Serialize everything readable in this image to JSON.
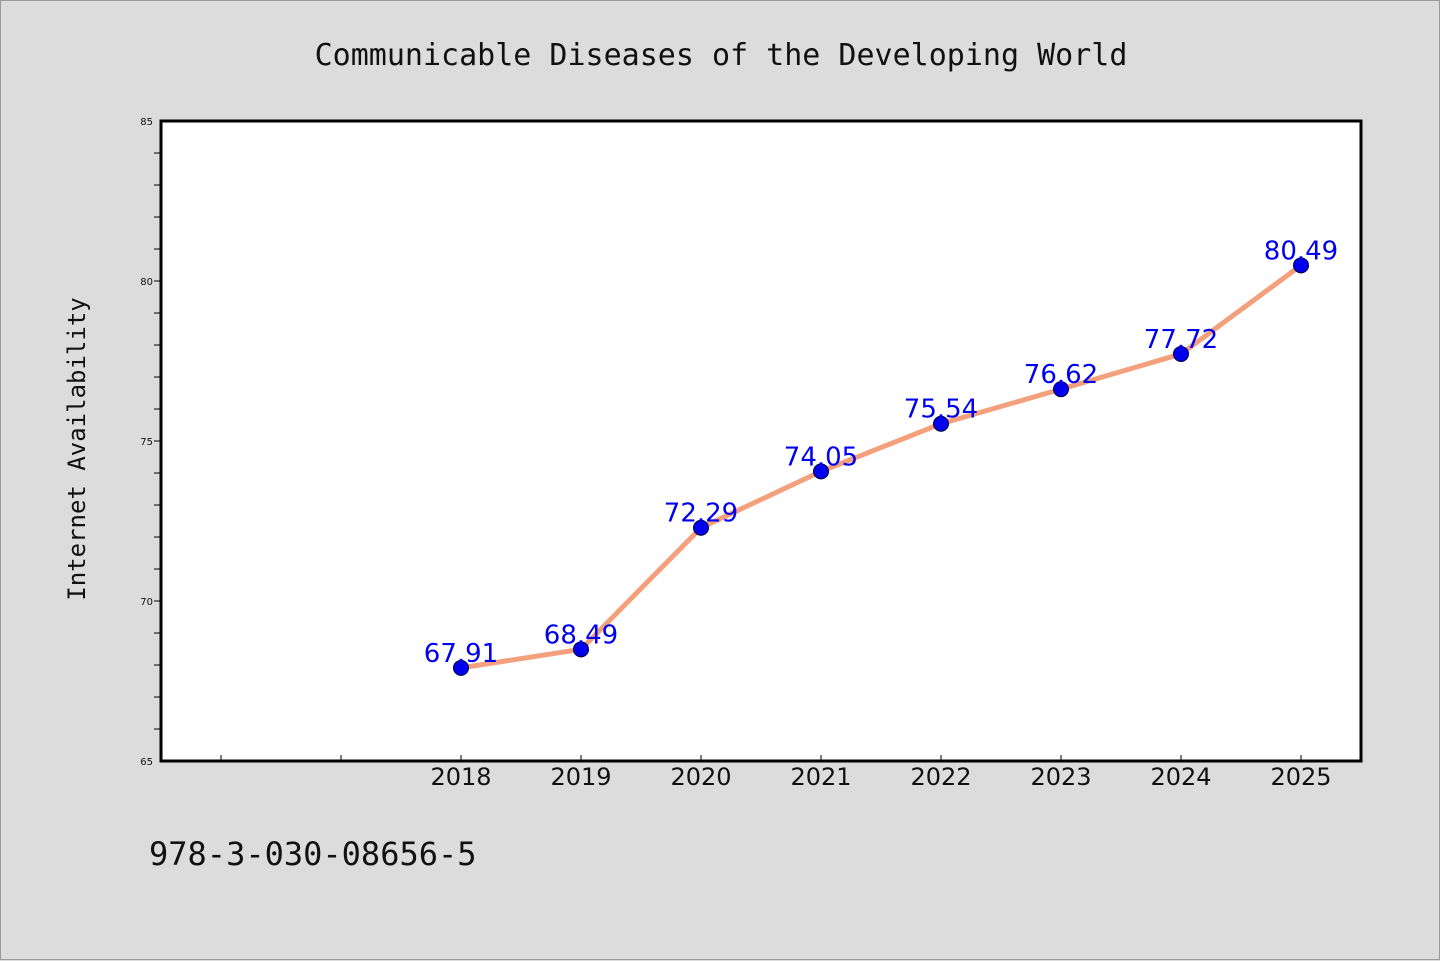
{
  "chart_data": {
    "type": "line",
    "title": "Communicable Diseases of the Developing World",
    "ylabel": "Internet Availability",
    "xlabel": "",
    "categories": [
      "2018",
      "2019",
      "2020",
      "2021",
      "2022",
      "2023",
      "2024",
      "2025"
    ],
    "values": [
      67.91,
      68.49,
      72.29,
      74.05,
      75.54,
      76.62,
      77.72,
      80.49
    ],
    "data_labels": [
      "67.91",
      "68.49",
      "72.29",
      "74.05",
      "75.54",
      "76.62",
      "77.72",
      "80.49"
    ],
    "ylim": [
      65,
      85
    ],
    "y_ticks": [
      65,
      70,
      75,
      80,
      85
    ],
    "y_tick_labels": [
      "65",
      "70",
      "75",
      "80",
      "85"
    ],
    "grid": false,
    "legend": "none",
    "line_color": "#f4a07c",
    "marker_color": "#0000ee",
    "label_color": "#0000ee"
  },
  "footer_text": "978-3-030-08656-5"
}
